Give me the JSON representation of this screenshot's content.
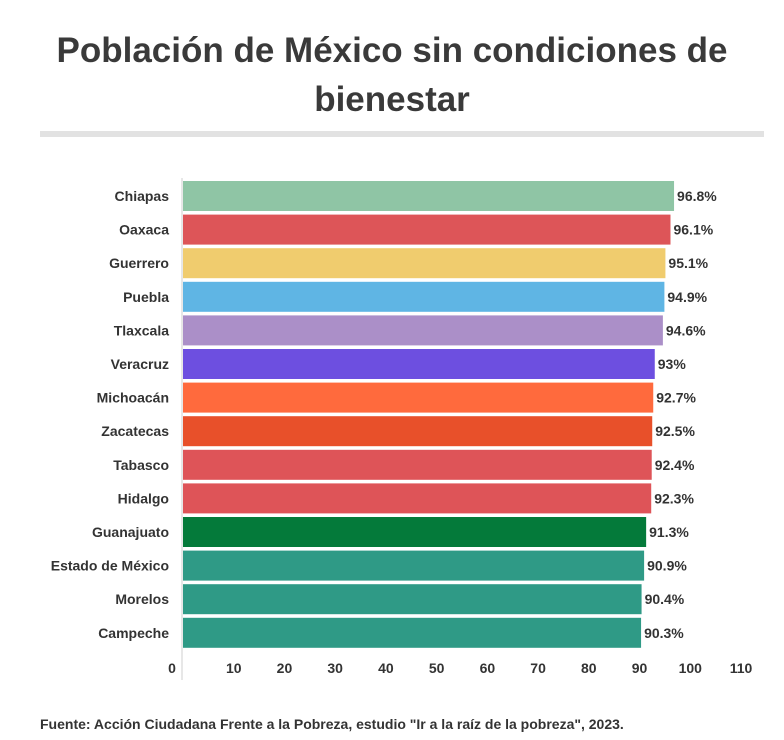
{
  "title": "Población de México sin condiciones de bienestar",
  "source": "Fuente: Acción Ciudadana Frente a la Pobreza, estudio \"Ir a la raíz de la pobreza\", 2023.",
  "chart_data": {
    "type": "bar",
    "orientation": "horizontal",
    "title": "Población de México sin condiciones de bienestar",
    "xlabel": "",
    "ylabel": "",
    "xlim": [
      0,
      110
    ],
    "ticks": [
      0,
      10,
      20,
      30,
      40,
      50,
      60,
      70,
      80,
      90,
      100,
      110
    ],
    "value_suffix": "%",
    "categories": [
      "Chiapas",
      "Oaxaca",
      "Guerrero",
      "Puebla",
      "Tlaxcala",
      "Veracruz",
      "Michoacán",
      "Zacatecas",
      "Tabasco",
      "Hidalgo",
      "Guanajuato",
      "Estado de México",
      "Morelos",
      "Campeche"
    ],
    "values": [
      96.8,
      96.1,
      95.1,
      94.9,
      94.6,
      93,
      92.7,
      92.5,
      92.4,
      92.3,
      91.3,
      90.9,
      90.4,
      90.3
    ],
    "colors": [
      "#8fc5a5",
      "#dd5558",
      "#f0cc6e",
      "#5fb5e4",
      "#ab8fc8",
      "#6d4fe0",
      "#ff6a3d",
      "#e8502a",
      "#de5458",
      "#de5458",
      "#047a3a",
      "#2f9a86",
      "#2f9a86",
      "#2f9a86"
    ],
    "grid": false,
    "legend": "none"
  }
}
